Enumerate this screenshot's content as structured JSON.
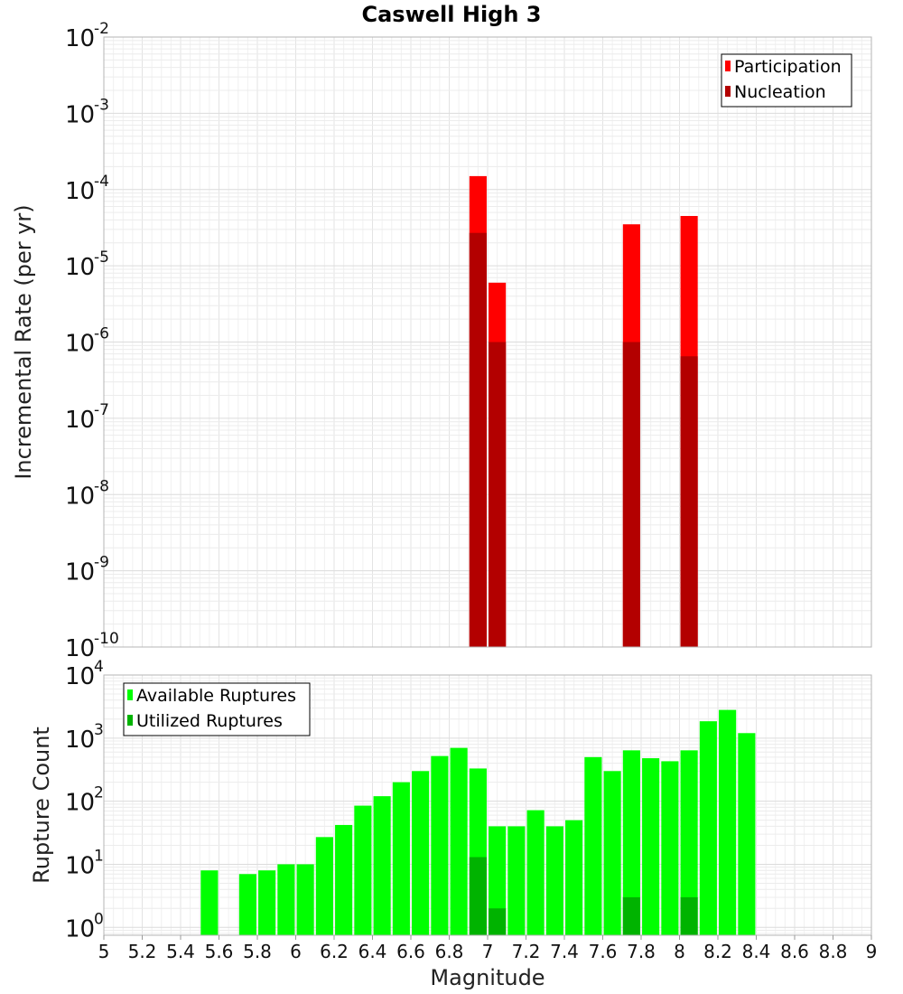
{
  "chart_data": [
    {
      "type": "bar",
      "scale": "log",
      "title": "Caswell High 3",
      "xlabel": "",
      "ylabel": "Incremental Rate (per yr)",
      "xlim": [
        5,
        9
      ],
      "ylim": [
        1e-10,
        0.01
      ],
      "grid": true,
      "legend_position": "top-right",
      "y_ticks": [
        {
          "base": "10",
          "exp": "-10",
          "value": 1e-10
        },
        {
          "base": "10",
          "exp": "-9",
          "value": 1e-09
        },
        {
          "base": "10",
          "exp": "-8",
          "value": 1e-08
        },
        {
          "base": "10",
          "exp": "-7",
          "value": 1e-07
        },
        {
          "base": "10",
          "exp": "-6",
          "value": 1e-06
        },
        {
          "base": "10",
          "exp": "-5",
          "value": 1e-05
        },
        {
          "base": "10",
          "exp": "-4",
          "value": 0.0001
        },
        {
          "base": "10",
          "exp": "-3",
          "value": 0.001
        },
        {
          "base": "10",
          "exp": "-2",
          "value": 0.01
        }
      ],
      "series": [
        {
          "name": "Participation",
          "color": "#ff0000",
          "points": [
            [
              6.95,
              0.00015
            ],
            [
              7.05,
              6e-06
            ],
            [
              7.75,
              3.5e-05
            ],
            [
              8.05,
              4.5e-05
            ]
          ]
        },
        {
          "name": "Nucleation",
          "color": "#b30000",
          "points": [
            [
              6.95,
              2.7e-05
            ],
            [
              7.05,
              1e-06
            ],
            [
              7.75,
              1e-06
            ],
            [
              8.05,
              6.5e-07
            ]
          ]
        }
      ]
    },
    {
      "type": "bar",
      "scale": "log",
      "title": "",
      "xlabel": "Magnitude",
      "ylabel": "Rupture Count",
      "xlim": [
        5,
        9
      ],
      "ylim": [
        0.75,
        10000
      ],
      "grid": true,
      "legend_position": "top-left",
      "x_tick_labels": [
        "5",
        "5.2",
        "5.4",
        "5.6",
        "5.8",
        "6",
        "6.2",
        "6.4",
        "6.6",
        "6.8",
        "7",
        "7.2",
        "7.4",
        "7.6",
        "7.8",
        "8",
        "8.2",
        "8.4",
        "8.6",
        "8.8",
        "9"
      ],
      "y_ticks": [
        {
          "base": "10",
          "exp": "0",
          "value": 1
        },
        {
          "base": "10",
          "exp": "1",
          "value": 10
        },
        {
          "base": "10",
          "exp": "2",
          "value": 100
        },
        {
          "base": "10",
          "exp": "3",
          "value": 1000
        },
        {
          "base": "10",
          "exp": "4",
          "value": 10000
        }
      ],
      "series": [
        {
          "name": "Available Ruptures",
          "color": "#00ff00",
          "points": [
            [
              5.55,
              8
            ],
            [
              5.75,
              7
            ],
            [
              5.85,
              8
            ],
            [
              5.95,
              10
            ],
            [
              6.05,
              10
            ],
            [
              6.15,
              27
            ],
            [
              6.25,
              42
            ],
            [
              6.35,
              85
            ],
            [
              6.45,
              120
            ],
            [
              6.55,
              200
            ],
            [
              6.65,
              300
            ],
            [
              6.75,
              520
            ],
            [
              6.85,
              700
            ],
            [
              6.95,
              330
            ],
            [
              7.05,
              40
            ],
            [
              7.15,
              40
            ],
            [
              7.25,
              72
            ],
            [
              7.35,
              40
            ],
            [
              7.45,
              50
            ],
            [
              7.55,
              500
            ],
            [
              7.65,
              300
            ],
            [
              7.75,
              640
            ],
            [
              7.85,
              480
            ],
            [
              7.95,
              430
            ],
            [
              8.05,
              640
            ],
            [
              8.15,
              1850
            ],
            [
              8.25,
              2800
            ],
            [
              8.35,
              1200
            ]
          ]
        },
        {
          "name": "Utilized Ruptures",
          "color": "#00b300",
          "points": [
            [
              6.95,
              13
            ],
            [
              7.05,
              2
            ],
            [
              7.75,
              3
            ],
            [
              8.05,
              3
            ]
          ]
        }
      ]
    }
  ]
}
